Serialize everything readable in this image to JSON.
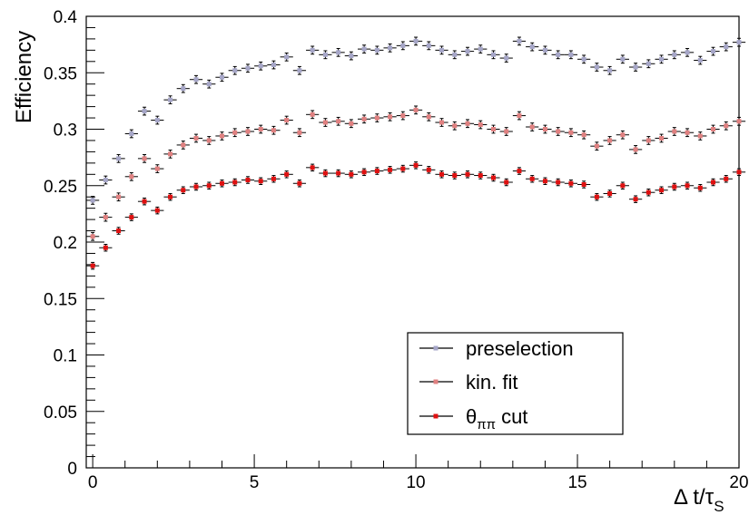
{
  "chart_data": {
    "type": "scatter",
    "title": "",
    "xlabel": "Δ t/τ_S",
    "xlabel_main": "Δ t/τ",
    "xlabel_sub": "S",
    "ylabel": "Efficiency",
    "xlim": [
      -0.2,
      20
    ],
    "ylim": [
      0,
      0.4
    ],
    "x_ticks": [
      0,
      5,
      10,
      15,
      20
    ],
    "y_ticks": [
      0,
      0.05,
      0.1,
      0.15,
      0.2,
      0.25,
      0.3,
      0.35,
      0.4
    ],
    "x_tick_labels": [
      "0",
      "5",
      "10",
      "15",
      "20"
    ],
    "y_tick_labels": [
      "0",
      "0.05",
      "0.1",
      "0.15",
      "0.2",
      "0.25",
      "0.3",
      "0.35",
      "0.4"
    ],
    "grid": false,
    "legend_position": "bottom-right",
    "series": [
      {
        "name": "preselection",
        "color": "#a6a6c8",
        "x": [
          0.0,
          0.4,
          0.8,
          1.2,
          1.6,
          2.0,
          2.4,
          2.8,
          3.2,
          3.6,
          4.0,
          4.4,
          4.8,
          5.2,
          5.6,
          6.0,
          6.4,
          6.8,
          7.2,
          7.6,
          8.0,
          8.4,
          8.8,
          9.2,
          9.6,
          10.0,
          10.4,
          10.8,
          11.2,
          11.6,
          12.0,
          12.4,
          12.8,
          13.2,
          13.6,
          14.0,
          14.4,
          14.8,
          15.2,
          15.6,
          16.0,
          16.4,
          16.8,
          17.2,
          17.6,
          18.0,
          18.4,
          18.8,
          19.2,
          19.6,
          20.0
        ],
        "values": [
          0.237,
          0.255,
          0.274,
          0.296,
          0.316,
          0.308,
          0.326,
          0.336,
          0.344,
          0.34,
          0.346,
          0.352,
          0.354,
          0.356,
          0.357,
          0.364,
          0.352,
          0.37,
          0.366,
          0.368,
          0.365,
          0.371,
          0.37,
          0.372,
          0.374,
          0.378,
          0.374,
          0.37,
          0.366,
          0.369,
          0.371,
          0.366,
          0.363,
          0.378,
          0.373,
          0.37,
          0.366,
          0.366,
          0.362,
          0.355,
          0.352,
          0.362,
          0.355,
          0.358,
          0.362,
          0.366,
          0.368,
          0.361,
          0.369,
          0.373,
          0.377
        ],
        "y_error": 0.0035
      },
      {
        "name": "kin. fit",
        "color": "#e08080",
        "x": [
          0.0,
          0.4,
          0.8,
          1.2,
          1.6,
          2.0,
          2.4,
          2.8,
          3.2,
          3.6,
          4.0,
          4.4,
          4.8,
          5.2,
          5.6,
          6.0,
          6.4,
          6.8,
          7.2,
          7.6,
          8.0,
          8.4,
          8.8,
          9.2,
          9.6,
          10.0,
          10.4,
          10.8,
          11.2,
          11.6,
          12.0,
          12.4,
          12.8,
          13.2,
          13.6,
          14.0,
          14.4,
          14.8,
          15.2,
          15.6,
          16.0,
          16.4,
          16.8,
          17.2,
          17.6,
          18.0,
          18.4,
          18.8,
          19.2,
          19.6,
          20.0
        ],
        "values": [
          0.205,
          0.222,
          0.24,
          0.258,
          0.274,
          0.265,
          0.278,
          0.286,
          0.292,
          0.29,
          0.294,
          0.297,
          0.298,
          0.3,
          0.299,
          0.308,
          0.297,
          0.313,
          0.306,
          0.307,
          0.305,
          0.309,
          0.31,
          0.311,
          0.312,
          0.317,
          0.311,
          0.306,
          0.303,
          0.305,
          0.304,
          0.3,
          0.298,
          0.312,
          0.302,
          0.3,
          0.298,
          0.297,
          0.295,
          0.285,
          0.29,
          0.295,
          0.282,
          0.29,
          0.292,
          0.298,
          0.297,
          0.294,
          0.3,
          0.303,
          0.307
        ],
        "y_error": 0.0035
      },
      {
        "name": "θ_ππ cut",
        "color": "#e01010",
        "x": [
          0.0,
          0.4,
          0.8,
          1.2,
          1.6,
          2.0,
          2.4,
          2.8,
          3.2,
          3.6,
          4.0,
          4.4,
          4.8,
          5.2,
          5.6,
          6.0,
          6.4,
          6.8,
          7.2,
          7.6,
          8.0,
          8.4,
          8.8,
          9.2,
          9.6,
          10.0,
          10.4,
          10.8,
          11.2,
          11.6,
          12.0,
          12.4,
          12.8,
          13.2,
          13.6,
          14.0,
          14.4,
          14.8,
          15.2,
          15.6,
          16.0,
          16.4,
          16.8,
          17.2,
          17.6,
          18.0,
          18.4,
          18.8,
          19.2,
          19.6,
          20.0
        ],
        "values": [
          0.179,
          0.195,
          0.21,
          0.222,
          0.236,
          0.228,
          0.24,
          0.246,
          0.249,
          0.25,
          0.252,
          0.253,
          0.255,
          0.254,
          0.256,
          0.26,
          0.252,
          0.266,
          0.261,
          0.261,
          0.26,
          0.262,
          0.263,
          0.264,
          0.265,
          0.268,
          0.264,
          0.26,
          0.259,
          0.26,
          0.259,
          0.257,
          0.253,
          0.263,
          0.256,
          0.254,
          0.253,
          0.252,
          0.251,
          0.24,
          0.243,
          0.25,
          0.238,
          0.244,
          0.246,
          0.249,
          0.25,
          0.248,
          0.253,
          0.256,
          0.262
        ],
        "y_error": 0.003
      }
    ],
    "legend": [
      {
        "label": "preselection",
        "color": "#a6a6c8"
      },
      {
        "label": "kin. fit",
        "color": "#e08080"
      },
      {
        "label_main": "θ",
        "label_sub": "ππ",
        "label_rest": " cut",
        "color": "#e01010"
      }
    ]
  }
}
